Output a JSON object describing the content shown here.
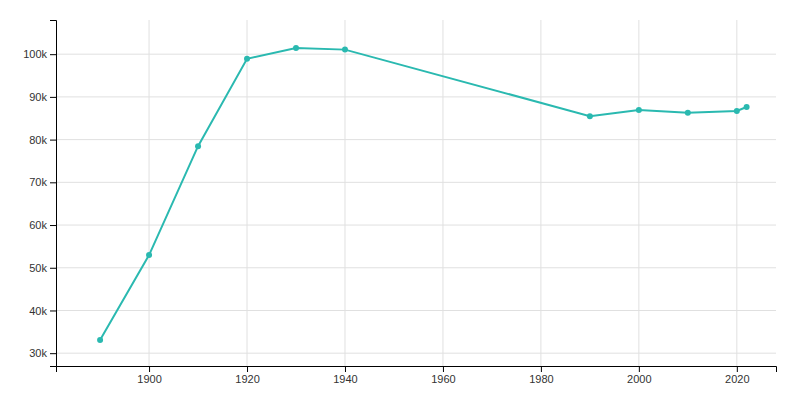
{
  "chart_data": {
    "type": "line",
    "x": [
      1890,
      1900,
      1910,
      1920,
      1930,
      1940,
      1990,
      2000,
      2010,
      2020,
      2022
    ],
    "values": [
      33115,
      52969,
      78466,
      98917,
      101463,
      101065,
      85493,
      86918,
      86265,
      86697,
      87643
    ],
    "color": "#2ab9b0",
    "marker": "circle",
    "xlim": [
      1881,
      2028
    ],
    "xticks": [
      1900,
      1920,
      1940,
      1960,
      1980,
      2000,
      2020
    ],
    "ylim": [
      27000,
      108000
    ],
    "yticks": [
      {
        "value": 30000,
        "label": "30k"
      },
      {
        "value": 40000,
        "label": "40k"
      },
      {
        "value": 50000,
        "label": "50k"
      },
      {
        "value": 60000,
        "label": "60k"
      },
      {
        "value": 70000,
        "label": "70k"
      },
      {
        "value": 80000,
        "label": "80k"
      },
      {
        "value": 90000,
        "label": "90k"
      },
      {
        "value": 100000,
        "label": "100k"
      }
    ],
    "grid": true
  }
}
